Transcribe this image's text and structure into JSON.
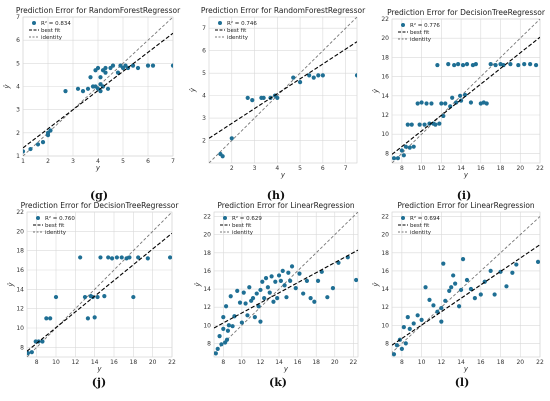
{
  "colors": {
    "points": "#1f6f94",
    "best_fit": "#000000",
    "identity": "#777777",
    "grid": "#d9d9d9"
  },
  "legend_labels": {
    "best_fit": "best fit",
    "identity": "identity"
  },
  "chart_data": [
    {
      "panel": "(g)",
      "type": "scatter",
      "title": "Prediction Error for RandomForestRegressor",
      "r2_label": "R² = 0.834",
      "xlabel": "y",
      "ylabel": "ŷ",
      "xlim": [
        1,
        7
      ],
      "ylim": [
        1,
        7
      ],
      "xticks": [
        1,
        2,
        3,
        4,
        5,
        6,
        7
      ],
      "yticks": [
        1,
        2,
        3,
        4,
        5,
        6,
        7
      ],
      "best_fit": [
        [
          1,
          1.35
        ],
        [
          7,
          6.3
        ]
      ],
      "points": [
        [
          1.0,
          1.2
        ],
        [
          1.3,
          1.3
        ],
        [
          1.6,
          1.5
        ],
        [
          1.8,
          1.6
        ],
        [
          2.0,
          1.9
        ],
        [
          2.0,
          2.0
        ],
        [
          2.1,
          2.1
        ],
        [
          2.7,
          3.8
        ],
        [
          3.2,
          3.9
        ],
        [
          3.4,
          3.8
        ],
        [
          3.6,
          3.9
        ],
        [
          3.7,
          4.4
        ],
        [
          3.8,
          4.0
        ],
        [
          3.9,
          4.7
        ],
        [
          3.9,
          4.0
        ],
        [
          4.0,
          3.9
        ],
        [
          4.0,
          4.8
        ],
        [
          4.1,
          4.4
        ],
        [
          4.1,
          4.1
        ],
        [
          4.1,
          3.8
        ],
        [
          4.2,
          4.7
        ],
        [
          4.2,
          4.0
        ],
        [
          4.3,
          4.8
        ],
        [
          4.3,
          4.6
        ],
        [
          4.4,
          3.9
        ],
        [
          4.5,
          4.8
        ],
        [
          4.6,
          4.9
        ],
        [
          4.8,
          4.6
        ],
        [
          4.9,
          4.9
        ],
        [
          5.0,
          4.8
        ],
        [
          5.1,
          4.9
        ],
        [
          5.2,
          4.8
        ],
        [
          5.4,
          4.9
        ],
        [
          5.6,
          4.8
        ],
        [
          6.0,
          4.9
        ],
        [
          6.2,
          4.9
        ],
        [
          7.0,
          4.9
        ]
      ]
    },
    {
      "panel": "(h)",
      "type": "scatter",
      "title": "Prediction Error for RandomForestRegressor",
      "r2_label": "R² = 0.746",
      "xlabel": "y",
      "ylabel": "ŷ",
      "xlim": [
        1,
        7.5
      ],
      "ylim": [
        1,
        7.5
      ],
      "xticks": [
        2,
        3,
        4,
        5,
        6,
        7
      ],
      "yticks": [
        2,
        3,
        4,
        5,
        6,
        7
      ],
      "best_fit": [
        [
          1,
          2.1
        ],
        [
          7.5,
          6.4
        ]
      ],
      "points": [
        [
          1.5,
          1.4
        ],
        [
          1.6,
          1.3
        ],
        [
          2.0,
          2.1
        ],
        [
          2.7,
          3.9
        ],
        [
          2.9,
          3.8
        ],
        [
          3.3,
          3.9
        ],
        [
          3.4,
          3.9
        ],
        [
          3.7,
          3.9
        ],
        [
          3.9,
          4.0
        ],
        [
          4.0,
          3.9
        ],
        [
          4.7,
          4.8
        ],
        [
          5.0,
          4.6
        ],
        [
          5.4,
          4.9
        ],
        [
          5.6,
          4.8
        ],
        [
          5.8,
          4.9
        ],
        [
          6.0,
          4.9
        ],
        [
          7.5,
          4.9
        ]
      ]
    },
    {
      "panel": "(i)",
      "type": "scatter",
      "title": "Prediction Error for DecisionTreeRegressor",
      "r2_label": "R² = 0.776",
      "xlabel": "y",
      "ylabel": "ŷ",
      "xlim": [
        7,
        22
      ],
      "ylim": [
        7,
        22
      ],
      "xticks": [
        8,
        10,
        12,
        14,
        16,
        18,
        20,
        22
      ],
      "yticks": [
        8,
        10,
        12,
        14,
        16,
        18,
        20,
        22
      ],
      "best_fit": [
        [
          7,
          7.9
        ],
        [
          22,
          20.1
        ]
      ],
      "points": [
        [
          7.2,
          7.5
        ],
        [
          7.6,
          7.5
        ],
        [
          8.0,
          8.3
        ],
        [
          8.2,
          7.8
        ],
        [
          8.4,
          8.7
        ],
        [
          8.6,
          11.0
        ],
        [
          8.8,
          8.6
        ],
        [
          9.0,
          11.0
        ],
        [
          9.2,
          8.7
        ],
        [
          9.6,
          13.2
        ],
        [
          9.8,
          11.0
        ],
        [
          10.0,
          13.3
        ],
        [
          10.3,
          11.0
        ],
        [
          10.5,
          13.2
        ],
        [
          10.8,
          11.1
        ],
        [
          11.0,
          13.2
        ],
        [
          11.2,
          11.1
        ],
        [
          11.4,
          11.0
        ],
        [
          11.6,
          17.2
        ],
        [
          11.8,
          11.1
        ],
        [
          12.0,
          13.2
        ],
        [
          12.2,
          11.9
        ],
        [
          12.4,
          13.2
        ],
        [
          12.7,
          17.3
        ],
        [
          12.9,
          12.9
        ],
        [
          13.1,
          13.8
        ],
        [
          13.3,
          17.2
        ],
        [
          13.5,
          13.3
        ],
        [
          13.7,
          17.3
        ],
        [
          13.9,
          14.0
        ],
        [
          14.0,
          13.5
        ],
        [
          14.2,
          17.2
        ],
        [
          14.4,
          14.1
        ],
        [
          14.6,
          17.3
        ],
        [
          15.0,
          13.3
        ],
        [
          15.2,
          17.2
        ],
        [
          15.5,
          17.3
        ],
        [
          16.0,
          13.2
        ],
        [
          16.3,
          13.3
        ],
        [
          16.6,
          13.2
        ],
        [
          17.0,
          17.3
        ],
        [
          17.5,
          17.2
        ],
        [
          18.0,
          17.3
        ],
        [
          18.3,
          17.2
        ],
        [
          19.0,
          17.3
        ],
        [
          19.8,
          17.2
        ],
        [
          20.4,
          17.3
        ],
        [
          21.0,
          17.3
        ],
        [
          21.6,
          17.2
        ]
      ]
    },
    {
      "panel": "(j)",
      "type": "scatter",
      "title": "Prediction Error for DecisionTreeRegressor",
      "r2_label": "R² = 0.760",
      "xlabel": "y",
      "ylabel": "ŷ",
      "xlim": [
        7,
        22
      ],
      "ylim": [
        7,
        22
      ],
      "xticks": [
        8,
        10,
        12,
        14,
        16,
        18,
        20,
        22
      ],
      "yticks": [
        8,
        10,
        12,
        14,
        16,
        18,
        20,
        22
      ],
      "best_fit": [
        [
          7,
          7.6
        ],
        [
          22,
          19.8
        ]
      ],
      "points": [
        [
          7.1,
          7.4
        ],
        [
          7.5,
          7.5
        ],
        [
          7.9,
          8.6
        ],
        [
          8.2,
          8.6
        ],
        [
          8.6,
          8.6
        ],
        [
          9.0,
          11.0
        ],
        [
          9.4,
          11.0
        ],
        [
          10.0,
          13.2
        ],
        [
          12.5,
          17.3
        ],
        [
          13.0,
          13.2
        ],
        [
          13.3,
          11.0
        ],
        [
          13.6,
          13.3
        ],
        [
          13.8,
          13.2
        ],
        [
          14.0,
          11.1
        ],
        [
          14.3,
          13.2
        ],
        [
          14.6,
          17.3
        ],
        [
          15.0,
          13.3
        ],
        [
          15.4,
          17.3
        ],
        [
          15.8,
          17.2
        ],
        [
          16.3,
          17.3
        ],
        [
          16.8,
          17.3
        ],
        [
          17.3,
          17.2
        ],
        [
          17.6,
          17.3
        ],
        [
          18.0,
          13.2
        ],
        [
          18.5,
          17.3
        ],
        [
          19.5,
          17.2
        ],
        [
          21.8,
          17.3
        ]
      ]
    },
    {
      "panel": "(k)",
      "type": "scatter",
      "title": "Prediction Error for LinearRegression",
      "r2_label": "R² = 0.629",
      "xlabel": "y",
      "ylabel": "ŷ",
      "xlim": [
        7,
        22.5
      ],
      "ylim": [
        6.5,
        22.5
      ],
      "xticks": [
        8,
        10,
        12,
        14,
        16,
        18,
        20,
        22
      ],
      "yticks": [
        8,
        10,
        12,
        14,
        16,
        18,
        20,
        22
      ],
      "best_fit": [
        [
          7,
          9.7
        ],
        [
          22.5,
          18.3
        ]
      ],
      "points": [
        [
          7.2,
          6.9
        ],
        [
          7.4,
          7.4
        ],
        [
          7.6,
          8.8
        ],
        [
          7.8,
          7.9
        ],
        [
          8.0,
          9.6
        ],
        [
          8.0,
          10.9
        ],
        [
          8.2,
          8.1
        ],
        [
          8.3,
          12.1
        ],
        [
          8.4,
          8.4
        ],
        [
          8.5,
          9.4
        ],
        [
          8.6,
          10.0
        ],
        [
          8.8,
          13.2
        ],
        [
          9.0,
          9.9
        ],
        [
          9.2,
          11.0
        ],
        [
          9.5,
          13.8
        ],
        [
          9.8,
          12.5
        ],
        [
          10.0,
          10.3
        ],
        [
          10.2,
          13.6
        ],
        [
          10.4,
          12.4
        ],
        [
          10.6,
          11.1
        ],
        [
          10.8,
          14.2
        ],
        [
          11.0,
          12.7
        ],
        [
          11.2,
          13.0
        ],
        [
          11.4,
          10.9
        ],
        [
          11.6,
          13.5
        ],
        [
          11.8,
          12.1
        ],
        [
          12.0,
          10.4
        ],
        [
          12.0,
          13.9
        ],
        [
          12.2,
          14.8
        ],
        [
          12.4,
          13.0
        ],
        [
          12.6,
          15.2
        ],
        [
          12.8,
          14.2
        ],
        [
          13.0,
          13.6
        ],
        [
          13.2,
          15.4
        ],
        [
          13.4,
          12.6
        ],
        [
          13.6,
          14.8
        ],
        [
          13.8,
          13.0
        ],
        [
          14.0,
          15.5
        ],
        [
          14.2,
          14.9
        ],
        [
          14.4,
          16.0
        ],
        [
          14.6,
          14.4
        ],
        [
          14.8,
          13.1
        ],
        [
          15.0,
          15.8
        ],
        [
          15.2,
          14.9
        ],
        [
          15.4,
          16.5
        ],
        [
          15.8,
          14.1
        ],
        [
          16.2,
          15.7
        ],
        [
          16.6,
          13.5
        ],
        [
          17.0,
          14.9
        ],
        [
          17.4,
          13.0
        ],
        [
          17.8,
          12.6
        ],
        [
          18.2,
          14.9
        ],
        [
          18.6,
          15.9
        ],
        [
          19.2,
          13.1
        ],
        [
          19.8,
          14.1
        ],
        [
          20.4,
          16.9
        ],
        [
          21.4,
          17.5
        ],
        [
          22.3,
          15.0
        ]
      ]
    },
    {
      "panel": "(l)",
      "type": "scatter",
      "title": "Prediction Error for LinearRegression",
      "r2_label": "R² = 0.694",
      "xlabel": "y",
      "ylabel": "ŷ",
      "xlim": [
        7,
        22
      ],
      "ylim": [
        6.5,
        22.5
      ],
      "xticks": [
        8,
        10,
        12,
        14,
        16,
        18,
        20,
        22
      ],
      "yticks": [
        8,
        10,
        12,
        14,
        16,
        18,
        20,
        22
      ],
      "best_fit": [
        [
          7,
          7.8
        ],
        [
          22,
          18.9
        ]
      ],
      "points": [
        [
          7.2,
          6.8
        ],
        [
          7.5,
          7.8
        ],
        [
          7.8,
          8.4
        ],
        [
          8.0,
          7.4
        ],
        [
          8.2,
          9.8
        ],
        [
          8.4,
          8.0
        ],
        [
          8.6,
          10.9
        ],
        [
          8.8,
          9.6
        ],
        [
          9.2,
          10.2
        ],
        [
          9.6,
          11.1
        ],
        [
          10.0,
          10.6
        ],
        [
          10.4,
          14.2
        ],
        [
          10.8,
          12.8
        ],
        [
          11.2,
          12.2
        ],
        [
          11.6,
          11.5
        ],
        [
          12.0,
          10.4
        ],
        [
          12.0,
          11.9
        ],
        [
          12.2,
          16.8
        ],
        [
          12.4,
          12.7
        ],
        [
          12.8,
          13.8
        ],
        [
          13.0,
          14.2
        ],
        [
          13.2,
          15.5
        ],
        [
          13.4,
          14.6
        ],
        [
          13.8,
          12.1
        ],
        [
          14.0,
          13.9
        ],
        [
          14.2,
          17.3
        ],
        [
          14.6,
          15.0
        ],
        [
          15.0,
          14.0
        ],
        [
          15.4,
          13.0
        ],
        [
          16.0,
          13.4
        ],
        [
          16.4,
          14.8
        ],
        [
          17.0,
          16.0
        ],
        [
          17.4,
          13.4
        ],
        [
          18.0,
          15.9
        ],
        [
          18.6,
          14.3
        ],
        [
          19.2,
          15.8
        ],
        [
          19.6,
          16.7
        ],
        [
          21.8,
          17.0
        ]
      ]
    }
  ]
}
